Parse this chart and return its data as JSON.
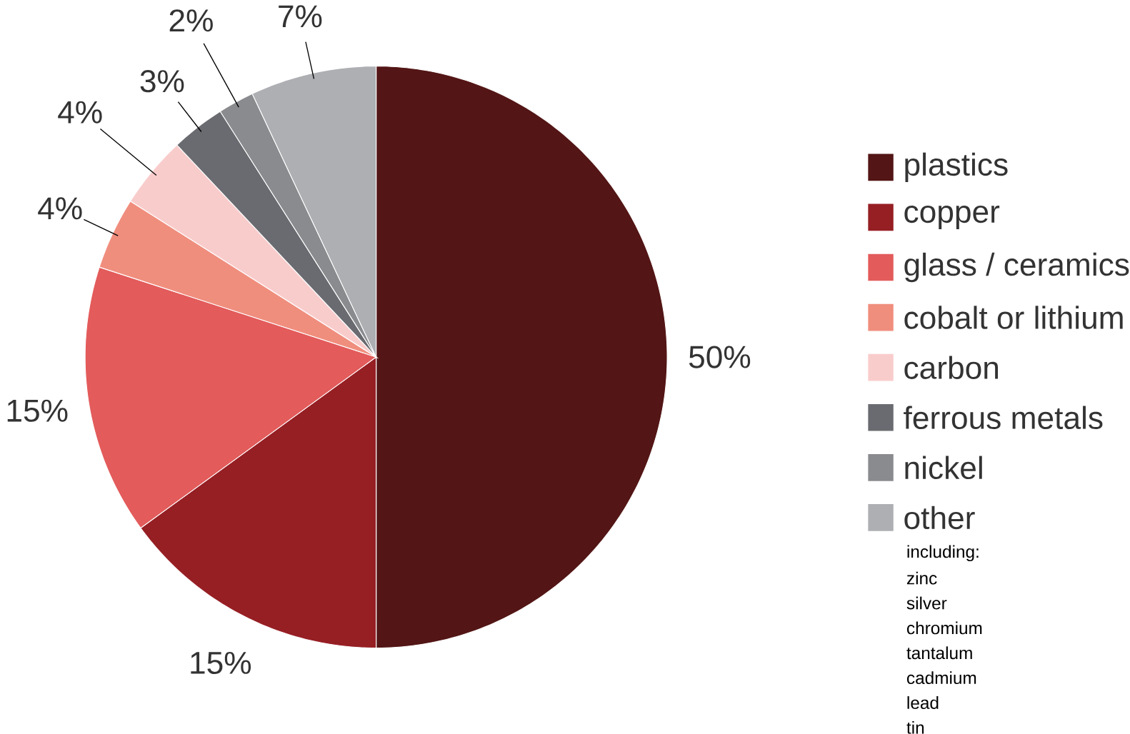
{
  "chart_data": {
    "type": "pie",
    "categories": [
      "plastics",
      "copper",
      "glass / ceramics",
      "cobalt or lithium",
      "carbon",
      "ferrous metals",
      "nickel",
      "other"
    ],
    "values": [
      50,
      15,
      15,
      4,
      4,
      3,
      2,
      7
    ],
    "colors": [
      "#531515",
      "#961f24",
      "#e35b5b",
      "#f08e7e",
      "#f9cccc",
      "#6a6b70",
      "#8a8b8e",
      "#aeafb3"
    ],
    "value_labels": [
      "50%",
      "15%",
      "15%",
      "4%",
      "4%",
      "3%",
      "2%",
      "7%"
    ],
    "legend": "right",
    "annotations": [
      "including:",
      "zinc",
      "silver",
      "chromium",
      "tantalum",
      "cadmium",
      "lead",
      "tin"
    ]
  }
}
